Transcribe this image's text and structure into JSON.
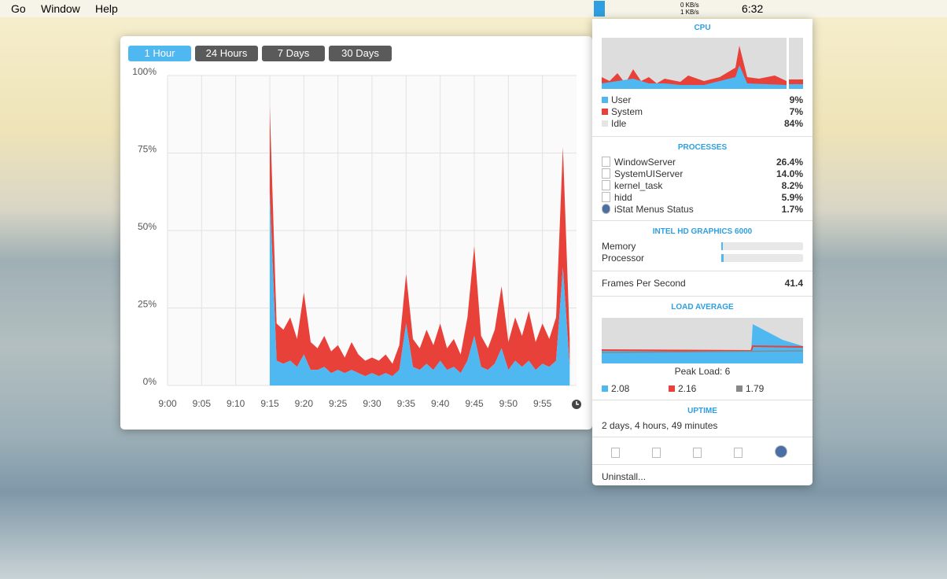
{
  "menu_bar": {
    "items": [
      "Go",
      "Window",
      "Help"
    ],
    "net_up": "0 KB/s",
    "net_down": "1 KB/s",
    "clock": "6:32"
  },
  "chart_data": {
    "type": "area",
    "ranges": [
      "1 Hour",
      "24 Hours",
      "7 Days",
      "30 Days"
    ],
    "x": [
      "9:15",
      "9:16",
      "9:17",
      "9:18",
      "9:19",
      "9:20",
      "9:21",
      "9:22",
      "9:23",
      "9:24",
      "9:25",
      "9:26",
      "9:27",
      "9:28",
      "9:29",
      "9:30",
      "9:31",
      "9:32",
      "9:33",
      "9:34",
      "9:35",
      "9:36",
      "9:37",
      "9:38",
      "9:39",
      "9:40",
      "9:41",
      "9:42",
      "9:43",
      "9:44",
      "9:45",
      "9:46",
      "9:47",
      "9:48",
      "9:49",
      "9:50",
      "9:51",
      "9:52",
      "9:53",
      "9:54",
      "9:55",
      "9:56",
      "9:57",
      "9:58",
      "9:59"
    ],
    "series": [
      {
        "name": "User",
        "color": "#4fb8f0",
        "values": [
          62,
          8,
          7,
          8,
          6,
          10,
          5,
          5,
          6,
          4,
          5,
          4,
          5,
          4,
          3,
          4,
          3,
          4,
          3,
          5,
          20,
          6,
          5,
          7,
          5,
          8,
          5,
          6,
          4,
          8,
          16,
          6,
          5,
          7,
          12,
          5,
          8,
          6,
          8,
          5,
          7,
          6,
          8,
          38,
          6
        ]
      },
      {
        "name": "System",
        "color": "#e8413a",
        "values": [
          28,
          12,
          11,
          14,
          9,
          20,
          9,
          7,
          10,
          7,
          8,
          5,
          9,
          6,
          5,
          5,
          5,
          6,
          4,
          8,
          16,
          9,
          7,
          11,
          8,
          12,
          7,
          9,
          6,
          14,
          29,
          10,
          7,
          11,
          20,
          9,
          14,
          10,
          16,
          9,
          13,
          9,
          14,
          39,
          9
        ]
      }
    ],
    "xlim": [
      "9:00",
      "10:00"
    ],
    "xticks": [
      "9:00",
      "9:05",
      "9:10",
      "9:15",
      "9:20",
      "9:25",
      "9:30",
      "9:35",
      "9:40",
      "9:45",
      "9:50",
      "9:55"
    ],
    "ylim": [
      0,
      100
    ],
    "yticks": [
      {
        "value": 0,
        "label": "0%"
      },
      {
        "value": 25,
        "label": "25%"
      },
      {
        "value": 50,
        "label": "50%"
      },
      {
        "value": 75,
        "label": "75%"
      },
      {
        "value": 100,
        "label": "100%"
      }
    ],
    "grid": true,
    "stacked": true
  },
  "istat_panel": {
    "cpu": {
      "title": "CPU",
      "rows": [
        [
          "User",
          "9%"
        ],
        [
          "System",
          "7%"
        ],
        [
          "Idle",
          "84%"
        ]
      ]
    },
    "processes": {
      "title": "PROCESSES",
      "rows": [
        [
          "WindowServer",
          "26.4%"
        ],
        [
          "SystemUIServer",
          "14.0%"
        ],
        [
          "kernel_task",
          "8.2%"
        ],
        [
          "hidd",
          "5.9%"
        ],
        [
          "iStat Menus Status",
          "1.7%"
        ]
      ]
    },
    "gpu": {
      "title": "INTEL HD GRAPHICS 6000",
      "rows": [
        "Memory",
        "Processor"
      ],
      "fps_label": "Frames Per Second",
      "fps": "41.4"
    },
    "load": {
      "title": "LOAD AVERAGE",
      "peak": "Peak Load: 6",
      "values": [
        "2.08",
        "2.16",
        "1.79"
      ]
    },
    "uptime": {
      "title": "UPTIME",
      "text": "2 days, 4 hours, 49 minutes"
    },
    "uninstall": "Uninstall..."
  }
}
